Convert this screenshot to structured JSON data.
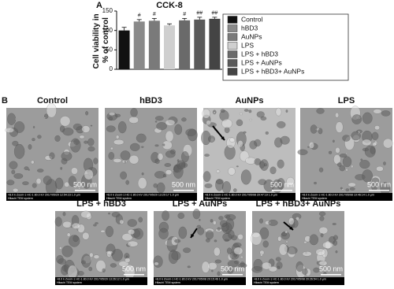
{
  "chart_data": {
    "type": "bar",
    "panel": "A",
    "title": "CCK-8",
    "ylabel": "Cell viability in % of control",
    "ylim": [
      0,
      150
    ],
    "yticks": [
      0,
      50,
      100,
      150
    ],
    "series": [
      {
        "name": "Control",
        "color": "#111111",
        "values": [
          100
        ],
        "errors": [
          8
        ]
      },
      {
        "name": "hBD3",
        "color": "#8a8a8a",
        "values": [
          123
        ],
        "errors": [
          5
        ],
        "annotation": "#"
      },
      {
        "name": "AuNPs",
        "color": "#7a7a7a",
        "values": [
          125
        ],
        "errors": [
          6
        ],
        "annotation": "#"
      },
      {
        "name": "LPS",
        "color": "#cfcfcf",
        "values": [
          113
        ],
        "errors": [
          4
        ]
      },
      {
        "name": "LPS + hBD3",
        "color": "#6a6a6a",
        "values": [
          126
        ],
        "errors": [
          5
        ],
        "annotation": "#"
      },
      {
        "name": "LPS + AuNPs",
        "color": "#5a5a5a",
        "values": [
          128
        ],
        "errors": [
          6
        ],
        "annotation": "##"
      },
      {
        "name": "LPS + hBD3+ AuNPs",
        "color": "#444444",
        "values": [
          130
        ],
        "errors": [
          4
        ],
        "annotation": "##"
      }
    ]
  },
  "panel_b": {
    "label": "B",
    "images": [
      {
        "title": "Control",
        "scale": "500 nm",
        "caption": "×8.0 k Zoom-1 HC-1 80.0 kV 2017/05/20 12:54:23  1.0 µm",
        "system": "Hitachi TEM system"
      },
      {
        "title": "hBD3",
        "scale": "500 nm",
        "caption": "×8.0 k Zoom-1 HC-1 80.0 kV 2017/05/20 13:20:17  1.0 µm",
        "system": "Hitachi TEM system"
      },
      {
        "title": "AuNPs",
        "scale": "500 nm",
        "caption": "×8.0 k Zoom-1 HC-1 80.0 kV 2017/05/08 20:47:19  1.0 µm",
        "system": "Hitachi TEM system"
      },
      {
        "title": "LPS",
        "scale": "500 nm",
        "caption": "×8.0 k Zoom-1 HC-1 80.0 kV 2017/05/08 19:46:14  1.0 µm",
        "system": "Hitachi TEM system"
      },
      {
        "title": "LPS + hBD3",
        "scale": "500 nm",
        "caption": "×8.0 k Zoom-1 HC-1 80.0 kV 2017/05/20 13:26:12  1.0 µm",
        "system": "Hitachi TEM system"
      },
      {
        "title": "LPS + AuNPs",
        "scale": "500 nm",
        "caption": "×8.0 k Zoom-1 HC-1 80.0 kV 2017/05/08 20:15:46  1.0 µm",
        "system": "Hitachi TEM system"
      },
      {
        "title": "LPS + hBD3+ AuNPs",
        "scale": "500 nm",
        "caption": "×8.0 k Zoom-1 HC-1 80.0 kV 2017/05/08 20:26:54  1.0 µm",
        "system": "Hitachi TEM system"
      }
    ]
  }
}
